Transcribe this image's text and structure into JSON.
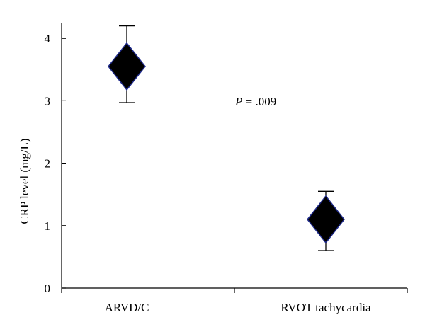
{
  "chart_data": {
    "type": "scatter",
    "categories": [
      "ARVD/C",
      "RVOT tachycardia"
    ],
    "series": [
      {
        "values": [
          3.55,
          1.1
        ],
        "error_low": [
          2.97,
          0.6
        ],
        "error_high": [
          4.2,
          1.55
        ],
        "marker": "diamond",
        "color": "#000000",
        "edge_color": "#1f2a8a"
      }
    ],
    "ylabel": "CRP level (mg/L)",
    "xlabel": "",
    "ylim": [
      0,
      4.2
    ],
    "yticks": [
      0,
      1,
      2,
      3,
      4
    ],
    "grid": false,
    "annotations": [
      {
        "italic_part": "P",
        "text_part": " = .009"
      }
    ]
  }
}
